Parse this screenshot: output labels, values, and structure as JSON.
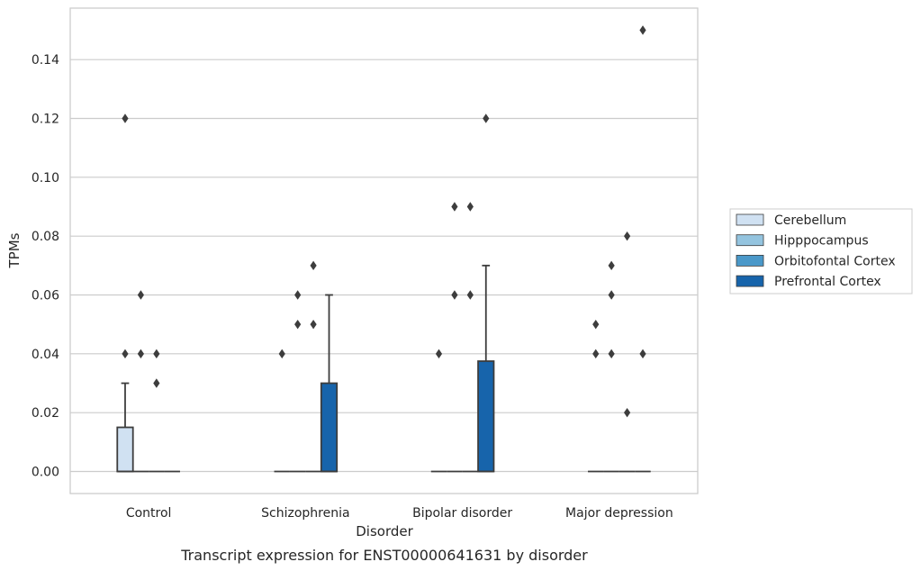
{
  "chart_data": {
    "type": "box",
    "caption": "Transcript expression for ENST00000641631 by disorder",
    "xlabel": "Disorder",
    "ylabel": "TPMs",
    "ylim": [
      -0.0075,
      0.1575
    ],
    "yticks": [
      0.0,
      0.02,
      0.04,
      0.06,
      0.08,
      0.1,
      0.12,
      0.14
    ],
    "ytick_labels": [
      "0.00",
      "0.02",
      "0.04",
      "0.06",
      "0.08",
      "0.10",
      "0.12",
      "0.14"
    ],
    "grid": "horizontal",
    "legend_position": "right",
    "categories": [
      "Control",
      "Schizophrenia",
      "Bipolar disorder",
      "Major depression"
    ],
    "series": [
      {
        "name": "Cerebellum",
        "color": "#d0e1f2",
        "boxes": [
          {
            "q1": 0.0,
            "median": 0.0,
            "q3": 0.015,
            "whisker_low": 0.0,
            "whisker_high": 0.03,
            "outliers": [
              0.04,
              0.12
            ]
          },
          {
            "q1": 0.0,
            "median": 0.0,
            "q3": 0.0,
            "whisker_low": 0.0,
            "whisker_high": 0.0,
            "outliers": [
              0.04
            ]
          },
          {
            "q1": 0.0,
            "median": 0.0,
            "q3": 0.0,
            "whisker_low": 0.0,
            "whisker_high": 0.0,
            "outliers": [
              0.04
            ]
          },
          {
            "q1": 0.0,
            "median": 0.0,
            "q3": 0.0,
            "whisker_low": 0.0,
            "whisker_high": 0.0,
            "outliers": [
              0.04,
              0.05
            ]
          }
        ]
      },
      {
        "name": "Hipppocampus",
        "color": "#94c4df",
        "boxes": [
          {
            "q1": 0.0,
            "median": 0.0,
            "q3": 0.0,
            "whisker_low": 0.0,
            "whisker_high": 0.0,
            "outliers": [
              0.04,
              0.06
            ]
          },
          {
            "q1": 0.0,
            "median": 0.0,
            "q3": 0.0,
            "whisker_low": 0.0,
            "whisker_high": 0.0,
            "outliers": [
              0.05,
              0.06
            ]
          },
          {
            "q1": 0.0,
            "median": 0.0,
            "q3": 0.0,
            "whisker_low": 0.0,
            "whisker_high": 0.0,
            "outliers": [
              0.06,
              0.09
            ]
          },
          {
            "q1": 0.0,
            "median": 0.0,
            "q3": 0.0,
            "whisker_low": 0.0,
            "whisker_high": 0.0,
            "outliers": [
              0.04,
              0.06,
              0.07
            ]
          }
        ]
      },
      {
        "name": "Orbitofontal Cortex",
        "color": "#4a98c9",
        "boxes": [
          {
            "q1": 0.0,
            "median": 0.0,
            "q3": 0.0,
            "whisker_low": 0.0,
            "whisker_high": 0.0,
            "outliers": [
              0.03,
              0.04
            ]
          },
          {
            "q1": 0.0,
            "median": 0.0,
            "q3": 0.0,
            "whisker_low": 0.0,
            "whisker_high": 0.0,
            "outliers": [
              0.05,
              0.07
            ]
          },
          {
            "q1": 0.0,
            "median": 0.0,
            "q3": 0.0,
            "whisker_low": 0.0,
            "whisker_high": 0.0,
            "outliers": [
              0.06,
              0.09
            ]
          },
          {
            "q1": 0.0,
            "median": 0.0,
            "q3": 0.0,
            "whisker_low": 0.0,
            "whisker_high": 0.0,
            "outliers": [
              0.02,
              0.08
            ]
          }
        ]
      },
      {
        "name": "Prefrontal Cortex",
        "color": "#1764ab",
        "boxes": [
          {
            "q1": 0.0,
            "median": 0.0,
            "q3": 0.0,
            "whisker_low": 0.0,
            "whisker_high": 0.0,
            "outliers": []
          },
          {
            "q1": 0.0,
            "median": 0.0,
            "q3": 0.03,
            "whisker_low": 0.0,
            "whisker_high": 0.06,
            "outliers": []
          },
          {
            "q1": 0.0,
            "median": 0.0,
            "q3": 0.0375,
            "whisker_low": 0.0,
            "whisker_high": 0.07,
            "outliers": [
              0.12
            ]
          },
          {
            "q1": 0.0,
            "median": 0.0,
            "q3": 0.0,
            "whisker_low": 0.0,
            "whisker_high": 0.0,
            "outliers": [
              0.04,
              0.15
            ]
          }
        ]
      }
    ]
  }
}
